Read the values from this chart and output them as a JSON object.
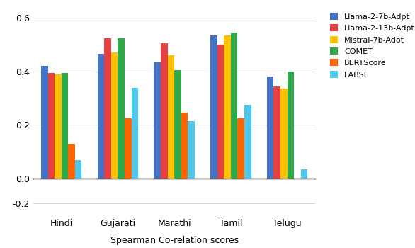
{
  "categories": [
    "Hindi",
    "Gujarati",
    "Marathi",
    "Tamil",
    "Telugu"
  ],
  "series": {
    "Llama-2-7b-Adpt": [
      0.42,
      0.465,
      0.435,
      0.535,
      0.38
    ],
    "Llama-2-13b-Adpt": [
      0.395,
      0.525,
      0.505,
      0.5,
      0.345
    ],
    "Mistral-7b-Adot": [
      0.39,
      0.47,
      0.46,
      0.535,
      0.335
    ],
    "COMET": [
      0.395,
      0.525,
      0.405,
      0.545,
      0.4
    ],
    "BERTScore": [
      0.13,
      0.225,
      0.245,
      0.225,
      -0.02
    ],
    "LABSE": [
      0.07,
      0.34,
      0.215,
      0.275,
      0.035
    ]
  },
  "colors": {
    "Llama-2-7b-Adpt": "#4472C4",
    "Llama-2-13b-Adpt": "#E84040",
    "Mistral-7b-Adot": "#FFC000",
    "COMET": "#2EAA4A",
    "BERTScore": "#FF6600",
    "LABSE": "#4DC8E8"
  },
  "legend_labels": [
    "Llama-2-7b-Adpt",
    "Llama-2-13b-Adpt",
    "Mistral-7b-Adot",
    "COMET",
    "BERTScore",
    "LABSE"
  ],
  "xlabel": "Spearman Co-relation scores",
  "background_color": "#ffffff",
  "bar_width": 0.12,
  "figsize": [
    5.86,
    3.5
  ],
  "dpi": 100,
  "upper_ylim": [
    0.0,
    0.63
  ],
  "upper_yticks": [
    0.0,
    0.2,
    0.4,
    0.6
  ],
  "upper_ytick_labels": [
    "0.0",
    "0.2",
    "0.4",
    "0.6"
  ],
  "lower_ylim": [
    -0.25,
    -0.15
  ],
  "lower_yticks": [
    -0.2
  ],
  "lower_ytick_labels": [
    "-0.2"
  ]
}
